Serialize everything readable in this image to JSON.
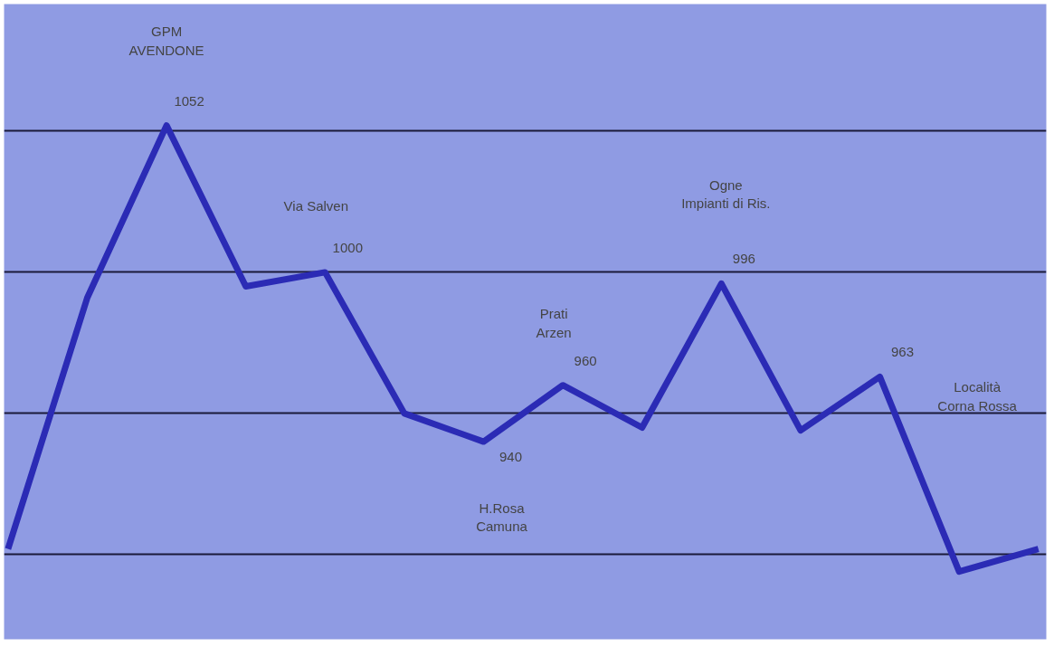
{
  "chart_data": {
    "type": "line",
    "categories": [
      null,
      null,
      null,
      null,
      null,
      null,
      null,
      null,
      null,
      null,
      null,
      null,
      null,
      null
    ],
    "series": [
      {
        "color": "#2b2bb5",
        "values": [
          902,
          991,
          1052,
          995,
          1000,
          950,
          940,
          960,
          945,
          996,
          944,
          963,
          894,
          902
        ],
        "value_labels": [
          null,
          null,
          "1052",
          null,
          "1000",
          null,
          "940",
          "960",
          null,
          "996",
          null,
          "963",
          null,
          null
        ]
      }
    ],
    "ylim": [
      870,
      1095
    ],
    "yticks": [
      {
        "value": 900,
        "label": null
      },
      {
        "value": 950,
        "label": null
      },
      {
        "value": 1000,
        "label": null
      },
      {
        "value": 1050,
        "label": null
      }
    ],
    "grid": "y",
    "tick_labels": false,
    "marker": "none",
    "line_style": "solid",
    "annotations": [
      "GPM\nAVENDONE",
      "Via Salven",
      "H.Rosa\nCamuna",
      "Prati\nArzen",
      "Ogne\nImpianti di Ris.",
      "Località\nCorna Rossa"
    ]
  }
}
